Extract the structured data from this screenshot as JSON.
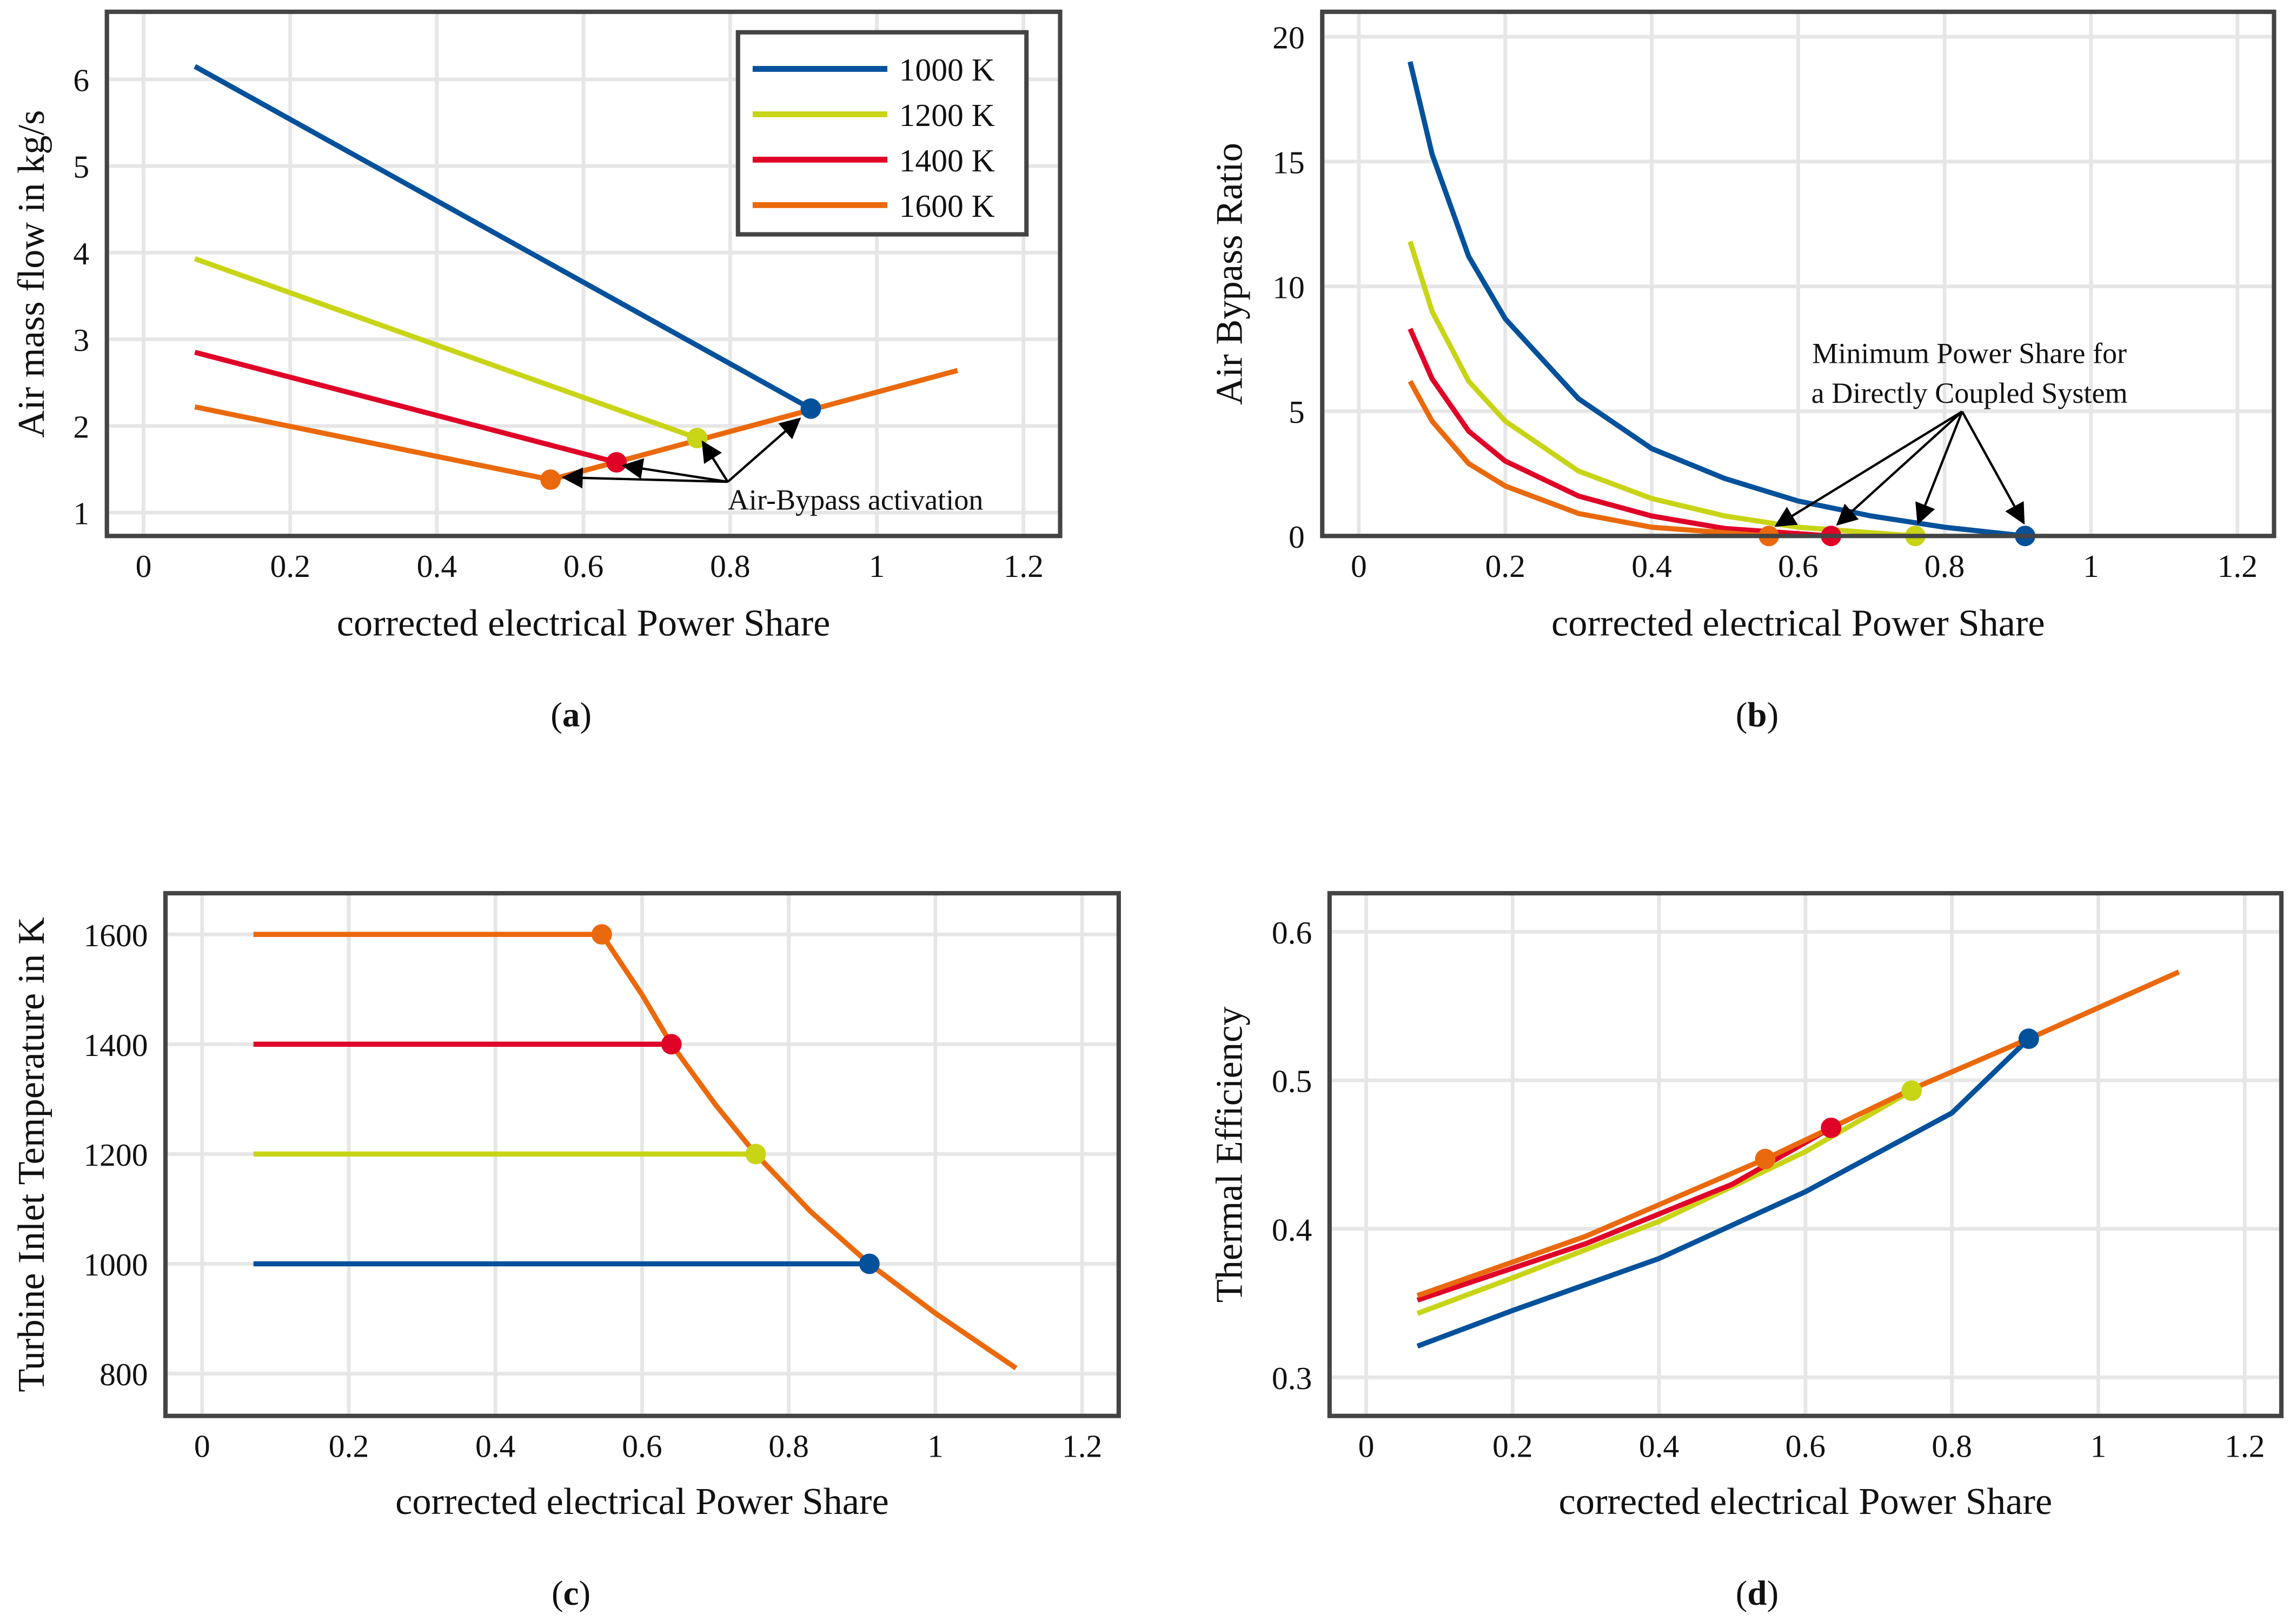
{
  "colors": {
    "1000 K": "#04519b",
    "1200 K": "#c8d416",
    "1400 K": "#e00328",
    "1600 K": "#ea690c",
    "axis": "#444444",
    "grid": "#e6e6e6"
  },
  "chart_data": [
    {
      "id": "a",
      "type": "line",
      "caption": "a",
      "xlabel": "corrected electrical Power Share",
      "ylabel": "Air mass flow in kg/s",
      "xlim": [
        -0.05,
        1.25
      ],
      "ylim": [
        0.73,
        6.78
      ],
      "xticks": [
        0,
        0.2,
        0.4,
        0.6,
        0.8,
        1,
        1.2
      ],
      "yticks": [
        1,
        2,
        3,
        4,
        5,
        6
      ],
      "grid": true,
      "legend": {
        "position": "top-right",
        "entries": [
          "1000 K",
          "1200 K",
          "1400 K",
          "1600 K"
        ]
      },
      "series": [
        {
          "name": "1000 K",
          "x": [
            0.07,
            0.91
          ],
          "y": [
            6.15,
            2.2
          ],
          "marker": [
            0.91,
            2.2
          ]
        },
        {
          "name": "1200 K",
          "x": [
            0.07,
            0.755
          ],
          "y": [
            3.93,
            1.86
          ],
          "marker": [
            0.755,
            1.86
          ]
        },
        {
          "name": "1400 K",
          "x": [
            0.07,
            0.645
          ],
          "y": [
            2.85,
            1.58
          ],
          "marker": [
            0.645,
            1.58
          ]
        },
        {
          "name": "1600 K",
          "x": [
            0.07,
            0.555,
            1.11
          ],
          "y": [
            2.22,
            1.38,
            2.64
          ],
          "marker": [
            0.555,
            1.38
          ]
        }
      ],
      "annotation": {
        "lines": [
          "Air-Bypass activation"
        ]
      }
    },
    {
      "id": "b",
      "type": "line",
      "caption": "b",
      "xlabel": "corrected electrical Power Share",
      "ylabel": "Air Bypass Ratio",
      "xlim": [
        -0.05,
        1.25
      ],
      "ylim": [
        0,
        21
      ],
      "xticks": [
        0,
        0.2,
        0.4,
        0.6,
        0.8,
        1,
        1.2
      ],
      "yticks": [
        0,
        5,
        10,
        15,
        20
      ],
      "grid": true,
      "series": [
        {
          "name": "1000 K",
          "x": [
            0.07,
            0.1,
            0.15,
            0.2,
            0.3,
            0.4,
            0.5,
            0.6,
            0.7,
            0.8,
            0.91
          ],
          "y": [
            19,
            15.3,
            11.2,
            8.7,
            5.5,
            3.5,
            2.3,
            1.4,
            0.8,
            0.35,
            0
          ],
          "marker": [
            0.91,
            0
          ]
        },
        {
          "name": "1200 K",
          "x": [
            0.07,
            0.1,
            0.15,
            0.2,
            0.3,
            0.4,
            0.5,
            0.6,
            0.76
          ],
          "y": [
            11.8,
            9,
            6.2,
            4.6,
            2.6,
            1.5,
            0.8,
            0.35,
            0
          ],
          "marker": [
            0.76,
            0
          ]
        },
        {
          "name": "1400 K",
          "x": [
            0.07,
            0.1,
            0.15,
            0.2,
            0.3,
            0.4,
            0.5,
            0.645
          ],
          "y": [
            8.3,
            6.3,
            4.2,
            3.0,
            1.6,
            0.8,
            0.3,
            0
          ],
          "marker": [
            0.645,
            0
          ]
        },
        {
          "name": "1600 K",
          "x": [
            0.07,
            0.1,
            0.15,
            0.2,
            0.3,
            0.4,
            0.56
          ],
          "y": [
            6.2,
            4.6,
            2.9,
            2.0,
            0.9,
            0.35,
            0
          ],
          "marker": [
            0.56,
            0
          ]
        }
      ],
      "annotation": {
        "lines": [
          "Minimum Power Share for",
          "a Directly Coupled System"
        ]
      }
    },
    {
      "id": "c",
      "type": "line",
      "caption": "c",
      "xlabel": "corrected electrical Power Share",
      "ylabel": "Turbine Inlet Temperature in K",
      "xlim": [
        -0.05,
        1.25
      ],
      "ylim": [
        723,
        1675
      ],
      "xticks": [
        0,
        0.2,
        0.4,
        0.6,
        0.8,
        1,
        1.2
      ],
      "yticks": [
        800,
        1000,
        1200,
        1400,
        1600
      ],
      "grid": true,
      "series": [
        {
          "name": "1000 K",
          "x": [
            0.07,
            0.91
          ],
          "y": [
            1000,
            1000
          ],
          "marker": [
            0.91,
            1000
          ]
        },
        {
          "name": "1200 K",
          "x": [
            0.07,
            0.755
          ],
          "y": [
            1200,
            1200
          ],
          "marker": [
            0.755,
            1200
          ]
        },
        {
          "name": "1400 K",
          "x": [
            0.07,
            0.64
          ],
          "y": [
            1400,
            1400
          ],
          "marker": [
            0.64,
            1400
          ]
        },
        {
          "name": "1600 K",
          "x": [
            0.07,
            0.545,
            0.6,
            0.64,
            0.7,
            0.755,
            0.83,
            0.91,
            1.0,
            1.11
          ],
          "y": [
            1600,
            1600,
            1490,
            1400,
            1290,
            1200,
            1095,
            1000,
            910,
            810
          ],
          "marker": [
            0.545,
            1600
          ]
        }
      ]
    },
    {
      "id": "d",
      "type": "line",
      "caption": "d",
      "xlabel": "corrected electrical Power Share",
      "ylabel": "Thermal Efficiency",
      "xlim": [
        -0.05,
        1.25
      ],
      "ylim": [
        0.274,
        0.626
      ],
      "xticks": [
        0,
        0.2,
        0.4,
        0.6,
        0.8,
        1,
        1.2
      ],
      "yticks": [
        0.3,
        0.4,
        0.5,
        0.6
      ],
      "grid": true,
      "series": [
        {
          "name": "1000 K",
          "x": [
            0.07,
            0.2,
            0.4,
            0.6,
            0.8,
            0.905
          ],
          "y": [
            0.321,
            0.345,
            0.38,
            0.425,
            0.478,
            0.528
          ],
          "marker": [
            0.905,
            0.528
          ]
        },
        {
          "name": "1200 K",
          "x": [
            0.07,
            0.2,
            0.4,
            0.6,
            0.745
          ],
          "y": [
            0.343,
            0.367,
            0.405,
            0.452,
            0.493
          ],
          "marker": [
            0.745,
            0.493
          ]
        },
        {
          "name": "1400 K",
          "x": [
            0.07,
            0.3,
            0.5,
            0.635
          ],
          "y": [
            0.352,
            0.39,
            0.43,
            0.468
          ],
          "marker": [
            0.635,
            0.468
          ]
        },
        {
          "name": "1600 K",
          "x": [
            0.07,
            0.3,
            0.545,
            0.635,
            0.745,
            0.905,
            1.11
          ],
          "y": [
            0.355,
            0.395,
            0.447,
            0.468,
            0.494,
            0.528,
            0.573
          ],
          "marker": [
            0.545,
            0.447
          ]
        }
      ]
    }
  ]
}
